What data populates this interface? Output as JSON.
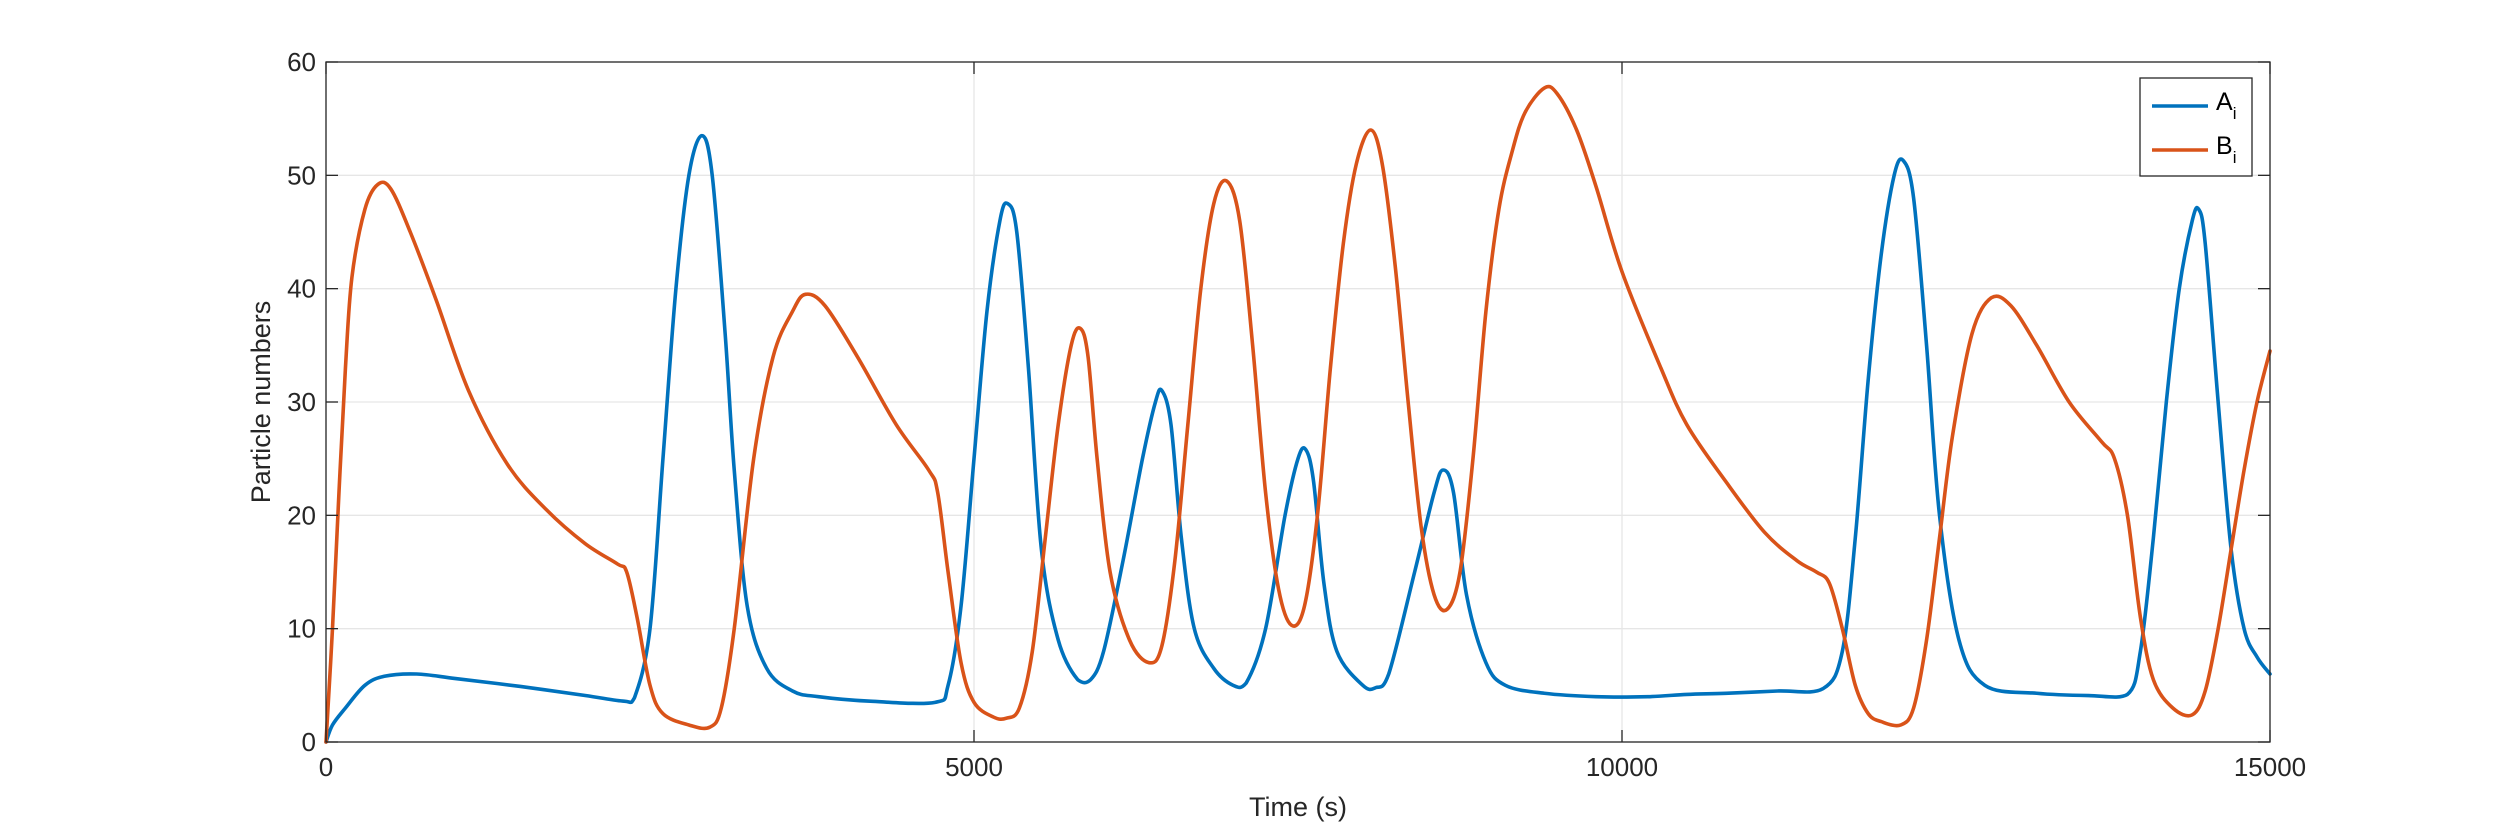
{
  "chart_data": {
    "type": "line",
    "xlabel": "Time (s)",
    "ylabel": "Particle numbers",
    "xlim": [
      0,
      15000
    ],
    "ylim": [
      0,
      60
    ],
    "xticks": [
      0,
      5000,
      10000,
      15000
    ],
    "xtick_labels": [
      "0",
      "5000",
      "10000",
      "15000"
    ],
    "yticks": [
      0,
      10,
      20,
      30,
      40,
      50,
      60
    ],
    "ytick_labels": [
      "0",
      "10",
      "20",
      "30",
      "40",
      "50",
      "60"
    ],
    "grid": true,
    "legend_position": "top-right",
    "series": [
      {
        "name": "A",
        "subscript": "i",
        "color": "#0072BD",
        "points": [
          [
            0,
            0
          ],
          [
            50,
            1.5
          ],
          [
            150,
            3
          ],
          [
            300,
            5
          ],
          [
            450,
            5.8
          ],
          [
            700,
            6
          ],
          [
            1000,
            5.6
          ],
          [
            1500,
            4.9
          ],
          [
            2000,
            4.1
          ],
          [
            2300,
            3.6
          ],
          [
            2380,
            3.9
          ],
          [
            2500,
            10
          ],
          [
            2600,
            25
          ],
          [
            2700,
            40
          ],
          [
            2800,
            50
          ],
          [
            2900,
            53.5
          ],
          [
            2980,
            50
          ],
          [
            3080,
            36
          ],
          [
            3150,
            24
          ],
          [
            3250,
            12
          ],
          [
            3400,
            6.5
          ],
          [
            3600,
            4.5
          ],
          [
            3800,
            4
          ],
          [
            4200,
            3.6
          ],
          [
            4700,
            3.5
          ],
          [
            4800,
            5
          ],
          [
            4900,
            12
          ],
          [
            5000,
            25
          ],
          [
            5100,
            38
          ],
          [
            5200,
            46
          ],
          [
            5260,
            47.5
          ],
          [
            5330,
            45
          ],
          [
            5420,
            33
          ],
          [
            5520,
            17
          ],
          [
            5650,
            9
          ],
          [
            5800,
            5.5
          ],
          [
            5900,
            5.5
          ],
          [
            6000,
            8
          ],
          [
            6150,
            16
          ],
          [
            6300,
            25
          ],
          [
            6400,
            30
          ],
          [
            6450,
            31
          ],
          [
            6520,
            28
          ],
          [
            6600,
            18
          ],
          [
            6700,
            10
          ],
          [
            6850,
            6.5
          ],
          [
            7000,
            5
          ],
          [
            7100,
            5.2
          ],
          [
            7250,
            10
          ],
          [
            7400,
            20
          ],
          [
            7500,
            25
          ],
          [
            7560,
            25.8
          ],
          [
            7620,
            23
          ],
          [
            7700,
            14
          ],
          [
            7800,
            8
          ],
          [
            8000,
            5
          ],
          [
            8100,
            4.8
          ],
          [
            8200,
            6
          ],
          [
            8400,
            15
          ],
          [
            8550,
            22
          ],
          [
            8620,
            24
          ],
          [
            8700,
            22
          ],
          [
            8800,
            13
          ],
          [
            8950,
            7
          ],
          [
            9100,
            5
          ],
          [
            9400,
            4.3
          ],
          [
            9800,
            4
          ],
          [
            10200,
            4
          ],
          [
            10500,
            4.2
          ],
          [
            10800,
            4.3
          ],
          [
            11200,
            4.5
          ],
          [
            11550,
            4.7
          ],
          [
            11700,
            8
          ],
          [
            11800,
            18
          ],
          [
            11900,
            32
          ],
          [
            12000,
            43
          ],
          [
            12100,
            50
          ],
          [
            12170,
            51.3
          ],
          [
            12250,
            48
          ],
          [
            12350,
            35
          ],
          [
            12450,
            20
          ],
          [
            12600,
            9
          ],
          [
            12800,
            5
          ],
          [
            13200,
            4.3
          ],
          [
            13600,
            4.1
          ],
          [
            13900,
            4.2
          ],
          [
            14000,
            8
          ],
          [
            14100,
            18
          ],
          [
            14200,
            30
          ],
          [
            14300,
            40
          ],
          [
            14400,
            46
          ],
          [
            14450,
            47
          ],
          [
            14500,
            44
          ],
          [
            14600,
            30
          ],
          [
            14700,
            17
          ],
          [
            14800,
            10
          ],
          [
            14900,
            7.5
          ],
          [
            15000,
            6
          ]
        ]
      },
      {
        "name": "B",
        "subscript": "i",
        "color": "#D95319",
        "points": [
          [
            0,
            0
          ],
          [
            50,
            10
          ],
          [
            100,
            22
          ],
          [
            150,
            33
          ],
          [
            200,
            41
          ],
          [
            300,
            47
          ],
          [
            400,
            49.2
          ],
          [
            500,
            48.8
          ],
          [
            650,
            45
          ],
          [
            850,
            39
          ],
          [
            1100,
            31
          ],
          [
            1400,
            24.5
          ],
          [
            1700,
            20.5
          ],
          [
            2000,
            17.5
          ],
          [
            2250,
            15.7
          ],
          [
            2320,
            15
          ],
          [
            2400,
            11
          ],
          [
            2500,
            5
          ],
          [
            2600,
            2.5
          ],
          [
            2800,
            1.5
          ],
          [
            2960,
            1.3
          ],
          [
            3050,
            3
          ],
          [
            3150,
            10
          ],
          [
            3300,
            25
          ],
          [
            3450,
            34
          ],
          [
            3600,
            38
          ],
          [
            3700,
            39.5
          ],
          [
            3850,
            38.5
          ],
          [
            4100,
            34
          ],
          [
            4400,
            28
          ],
          [
            4650,
            24
          ],
          [
            4720,
            22
          ],
          [
            4800,
            15
          ],
          [
            4900,
            7
          ],
          [
            5000,
            3.5
          ],
          [
            5150,
            2.2
          ],
          [
            5250,
            2.1
          ],
          [
            5350,
            3
          ],
          [
            5450,
            8
          ],
          [
            5550,
            18
          ],
          [
            5650,
            28
          ],
          [
            5750,
            35
          ],
          [
            5820,
            36.5
          ],
          [
            5880,
            34
          ],
          [
            5950,
            25
          ],
          [
            6050,
            15
          ],
          [
            6200,
            9
          ],
          [
            6350,
            7
          ],
          [
            6450,
            8.5
          ],
          [
            6550,
            16
          ],
          [
            6650,
            28
          ],
          [
            6750,
            40
          ],
          [
            6850,
            47.5
          ],
          [
            6950,
            49.5
          ],
          [
            7050,
            46
          ],
          [
            7150,
            35
          ],
          [
            7250,
            22
          ],
          [
            7350,
            13.5
          ],
          [
            7450,
            10.3
          ],
          [
            7550,
            12
          ],
          [
            7650,
            20
          ],
          [
            7750,
            33
          ],
          [
            7850,
            44
          ],
          [
            7950,
            51
          ],
          [
            8060,
            54
          ],
          [
            8150,
            51
          ],
          [
            8250,
            42
          ],
          [
            8350,
            30
          ],
          [
            8450,
            19
          ],
          [
            8550,
            13
          ],
          [
            8650,
            11.7
          ],
          [
            8750,
            15
          ],
          [
            8850,
            25
          ],
          [
            8950,
            38
          ],
          [
            9050,
            47
          ],
          [
            9150,
            52
          ],
          [
            9250,
            55.5
          ],
          [
            9400,
            57.7
          ],
          [
            9500,
            57.2
          ],
          [
            9650,
            54
          ],
          [
            9800,
            49
          ],
          [
            10000,
            41.5
          ],
          [
            10300,
            33
          ],
          [
            10500,
            28
          ],
          [
            10800,
            23
          ],
          [
            11100,
            18.5
          ],
          [
            11350,
            16
          ],
          [
            11500,
            15
          ],
          [
            11600,
            14
          ],
          [
            11700,
            10
          ],
          [
            11800,
            5
          ],
          [
            11900,
            2.5
          ],
          [
            12000,
            1.8
          ],
          [
            12150,
            1.5
          ],
          [
            12250,
            3
          ],
          [
            12350,
            9
          ],
          [
            12450,
            18
          ],
          [
            12550,
            27
          ],
          [
            12700,
            36
          ],
          [
            12850,
            39.2
          ],
          [
            13000,
            38.5
          ],
          [
            13200,
            35
          ],
          [
            13450,
            30
          ],
          [
            13700,
            26.5
          ],
          [
            13800,
            25
          ],
          [
            13900,
            20
          ],
          [
            14000,
            11
          ],
          [
            14100,
            5.5
          ],
          [
            14250,
            3
          ],
          [
            14400,
            2.4
          ],
          [
            14500,
            4.5
          ],
          [
            14600,
            10
          ],
          [
            14700,
            17
          ],
          [
            14800,
            24
          ],
          [
            14900,
            30
          ],
          [
            15000,
            34.5
          ]
        ]
      }
    ]
  }
}
